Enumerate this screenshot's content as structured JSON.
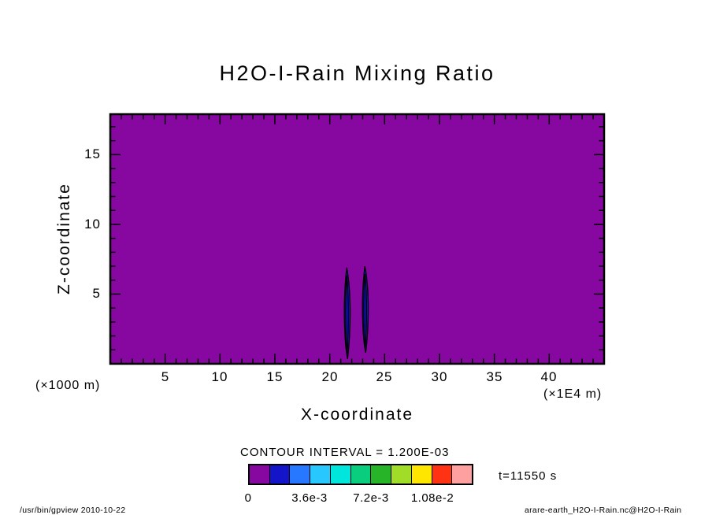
{
  "title": "H2O-I-Rain Mixing Ratio",
  "axes": {
    "x_label": "X-coordinate",
    "y_label": "Z-coordinate",
    "x_unit": "(×1E4 m)",
    "y_unit": "(×1000 m)",
    "x_ticks": [
      "5",
      "10",
      "15",
      "20",
      "25",
      "30",
      "35",
      "40"
    ],
    "y_ticks": [
      "15",
      "10",
      "5"
    ]
  },
  "colorbar": {
    "title": "CONTOUR INTERVAL = 1.200E-03",
    "tick_labels": [
      "0",
      "3.6e-3",
      "7.2e-3",
      "1.08e-2"
    ],
    "colors": [
      "#8708A1",
      "#1414C8",
      "#2877FF",
      "#28C8FF",
      "#00E6DC",
      "#0ACD7D",
      "#28B428",
      "#A0DC28",
      "#FFE600",
      "#FF3214",
      "#FFA0A0"
    ]
  },
  "annotations": {
    "time": "t=11550 s"
  },
  "footer": {
    "left": "/usr/bin/gpview   2010-10-22",
    "right": "arare-earth_H2O-I-Rain.nc@H2O-I-Rain"
  },
  "chart_data": {
    "type": "heatmap",
    "title": "H2O-I-Rain Mixing Ratio",
    "xlabel": "X-coordinate (×1E4 m)",
    "ylabel": "Z-coordinate (×1000 m)",
    "xlim": [
      0,
      45
    ],
    "ylim": [
      0,
      17.9
    ],
    "time": "t=11550 s",
    "contour_interval": 0.0012,
    "colorbar_tick_values": [
      0,
      0.0036,
      0.0072,
      0.0108
    ],
    "background_value": 0,
    "legend_position": "bottom",
    "grid": false,
    "features": [
      {
        "name": "rain-shaft-1",
        "x_center": 21.55,
        "z_bottom": 0.35,
        "z_top": 6.9,
        "width": 0.75,
        "value_range": [
          0.0012,
          0.0036
        ]
      },
      {
        "name": "rain-shaft-2",
        "x_center": 23.2,
        "z_bottom": 0.8,
        "z_top": 7.0,
        "width": 0.75,
        "value_range": [
          0.0012,
          0.0036
        ]
      }
    ]
  }
}
